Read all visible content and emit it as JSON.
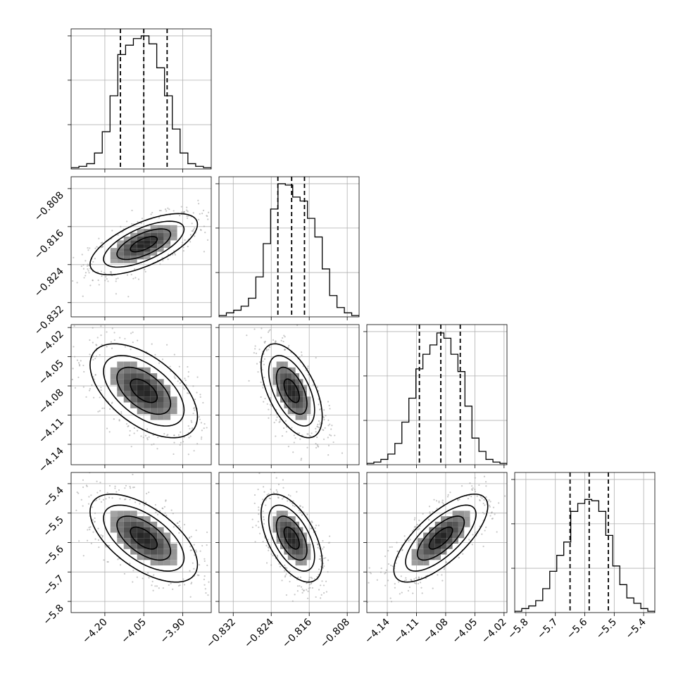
{
  "chart_data": {
    "type": "corner",
    "n_params": 4,
    "parameters": [
      {
        "median": -4.05,
        "q16": -4.14,
        "q84": -3.96,
        "axis_range": [
          -4.33,
          -3.79
        ],
        "ticks": [
          -4.2,
          -4.05,
          -3.9
        ],
        "tick_labels": [
          "−4.20",
          "−4.05",
          "−3.90"
        ],
        "hist": [
          1,
          2,
          4,
          12,
          28,
          55,
          86,
          93,
          98,
          100,
          94,
          76,
          55,
          30,
          12,
          4,
          2,
          1
        ]
      },
      {
        "median": -0.8197,
        "q16": -0.8226,
        "q84": -0.817,
        "axis_range": [
          -0.835,
          -0.8055
        ],
        "ticks": [
          -0.832,
          -0.824,
          -0.816,
          -0.808
        ],
        "tick_labels": [
          "−0.832",
          "−0.824",
          "−0.816",
          "−0.808"
        ],
        "hist": [
          1,
          3,
          5,
          8,
          14,
          30,
          55,
          81,
          100,
          99,
          90,
          87,
          74,
          60,
          36,
          16,
          7,
          3,
          1
        ]
      },
      {
        "median": -4.085,
        "q16": -4.107,
        "q84": -4.065,
        "axis_range": [
          -4.161,
          -4.017
        ],
        "ticks": [
          -4.14,
          -4.11,
          -4.08,
          -4.05,
          -4.02
        ],
        "tick_labels": [
          "−4.14",
          "−4.11",
          "−4.08",
          "−4.05",
          "−4.02"
        ],
        "hist": [
          1,
          2,
          4,
          8,
          16,
          32,
          50,
          72,
          83,
          90,
          99,
          95,
          83,
          70,
          44,
          20,
          10,
          4,
          2,
          1
        ]
      },
      {
        "median": -5.585,
        "q16": -5.65,
        "q84": -5.52,
        "axis_range": [
          -5.838,
          -5.362
        ],
        "ticks": [
          -5.8,
          -5.7,
          -5.6,
          -5.5,
          -5.4
        ],
        "tick_labels": [
          "−5.8",
          "−5.7",
          "−5.6",
          "−5.5",
          "−5.4"
        ],
        "hist": [
          1,
          3,
          5,
          9,
          18,
          31,
          43,
          53,
          76,
          82,
          85,
          84,
          76,
          58,
          35,
          21,
          11,
          7,
          3,
          1
        ]
      }
    ],
    "correlations": [
      [
        1.0,
        0.65,
        -0.55,
        -0.6
      ],
      [
        0.65,
        1.0,
        -0.55,
        -0.55
      ],
      [
        -0.55,
        -0.55,
        1.0,
        0.72
      ],
      [
        -0.6,
        -0.55,
        0.72,
        1.0
      ]
    ],
    "contour_levels_sigma": [
      0.5,
      1.0,
      1.5,
      2.0
    ],
    "quantiles": [
      0.16,
      0.5,
      0.84
    ],
    "grid": true,
    "colors": {
      "lines": "#000000",
      "scatter": "#9a9a9a",
      "grid": "#b0b0b0"
    }
  }
}
